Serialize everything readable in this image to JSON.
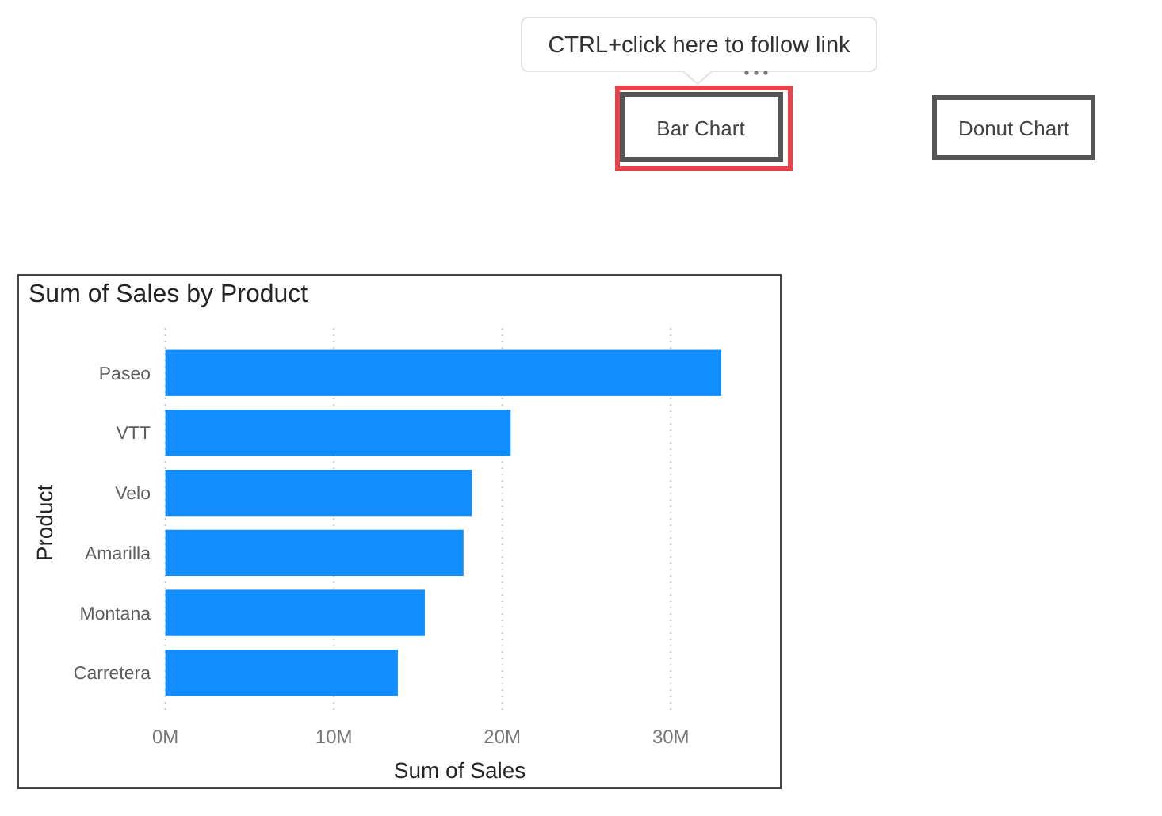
{
  "chart_data": {
    "type": "bar",
    "orientation": "horizontal",
    "title": "Sum of Sales by Product",
    "xlabel": "Sum of Sales",
    "ylabel": "Product",
    "categories": [
      "Paseo",
      "VTT",
      "Velo",
      "Amarilla",
      "Montana",
      "Carretera"
    ],
    "values": [
      33.0,
      20.5,
      18.2,
      17.7,
      15.4,
      13.8
    ],
    "color": "#118dff",
    "xlim": [
      0,
      33.0
    ],
    "xticks": [
      {
        "value": 0,
        "label": "0M"
      },
      {
        "value": 10,
        "label": "10M"
      },
      {
        "value": 20,
        "label": "20M"
      },
      {
        "value": 30,
        "label": "30M"
      }
    ],
    "grid": "x",
    "annotations": [
      "CTRL+click here to follow link",
      "Bar Chart",
      "Donut Chart"
    ]
  }
}
